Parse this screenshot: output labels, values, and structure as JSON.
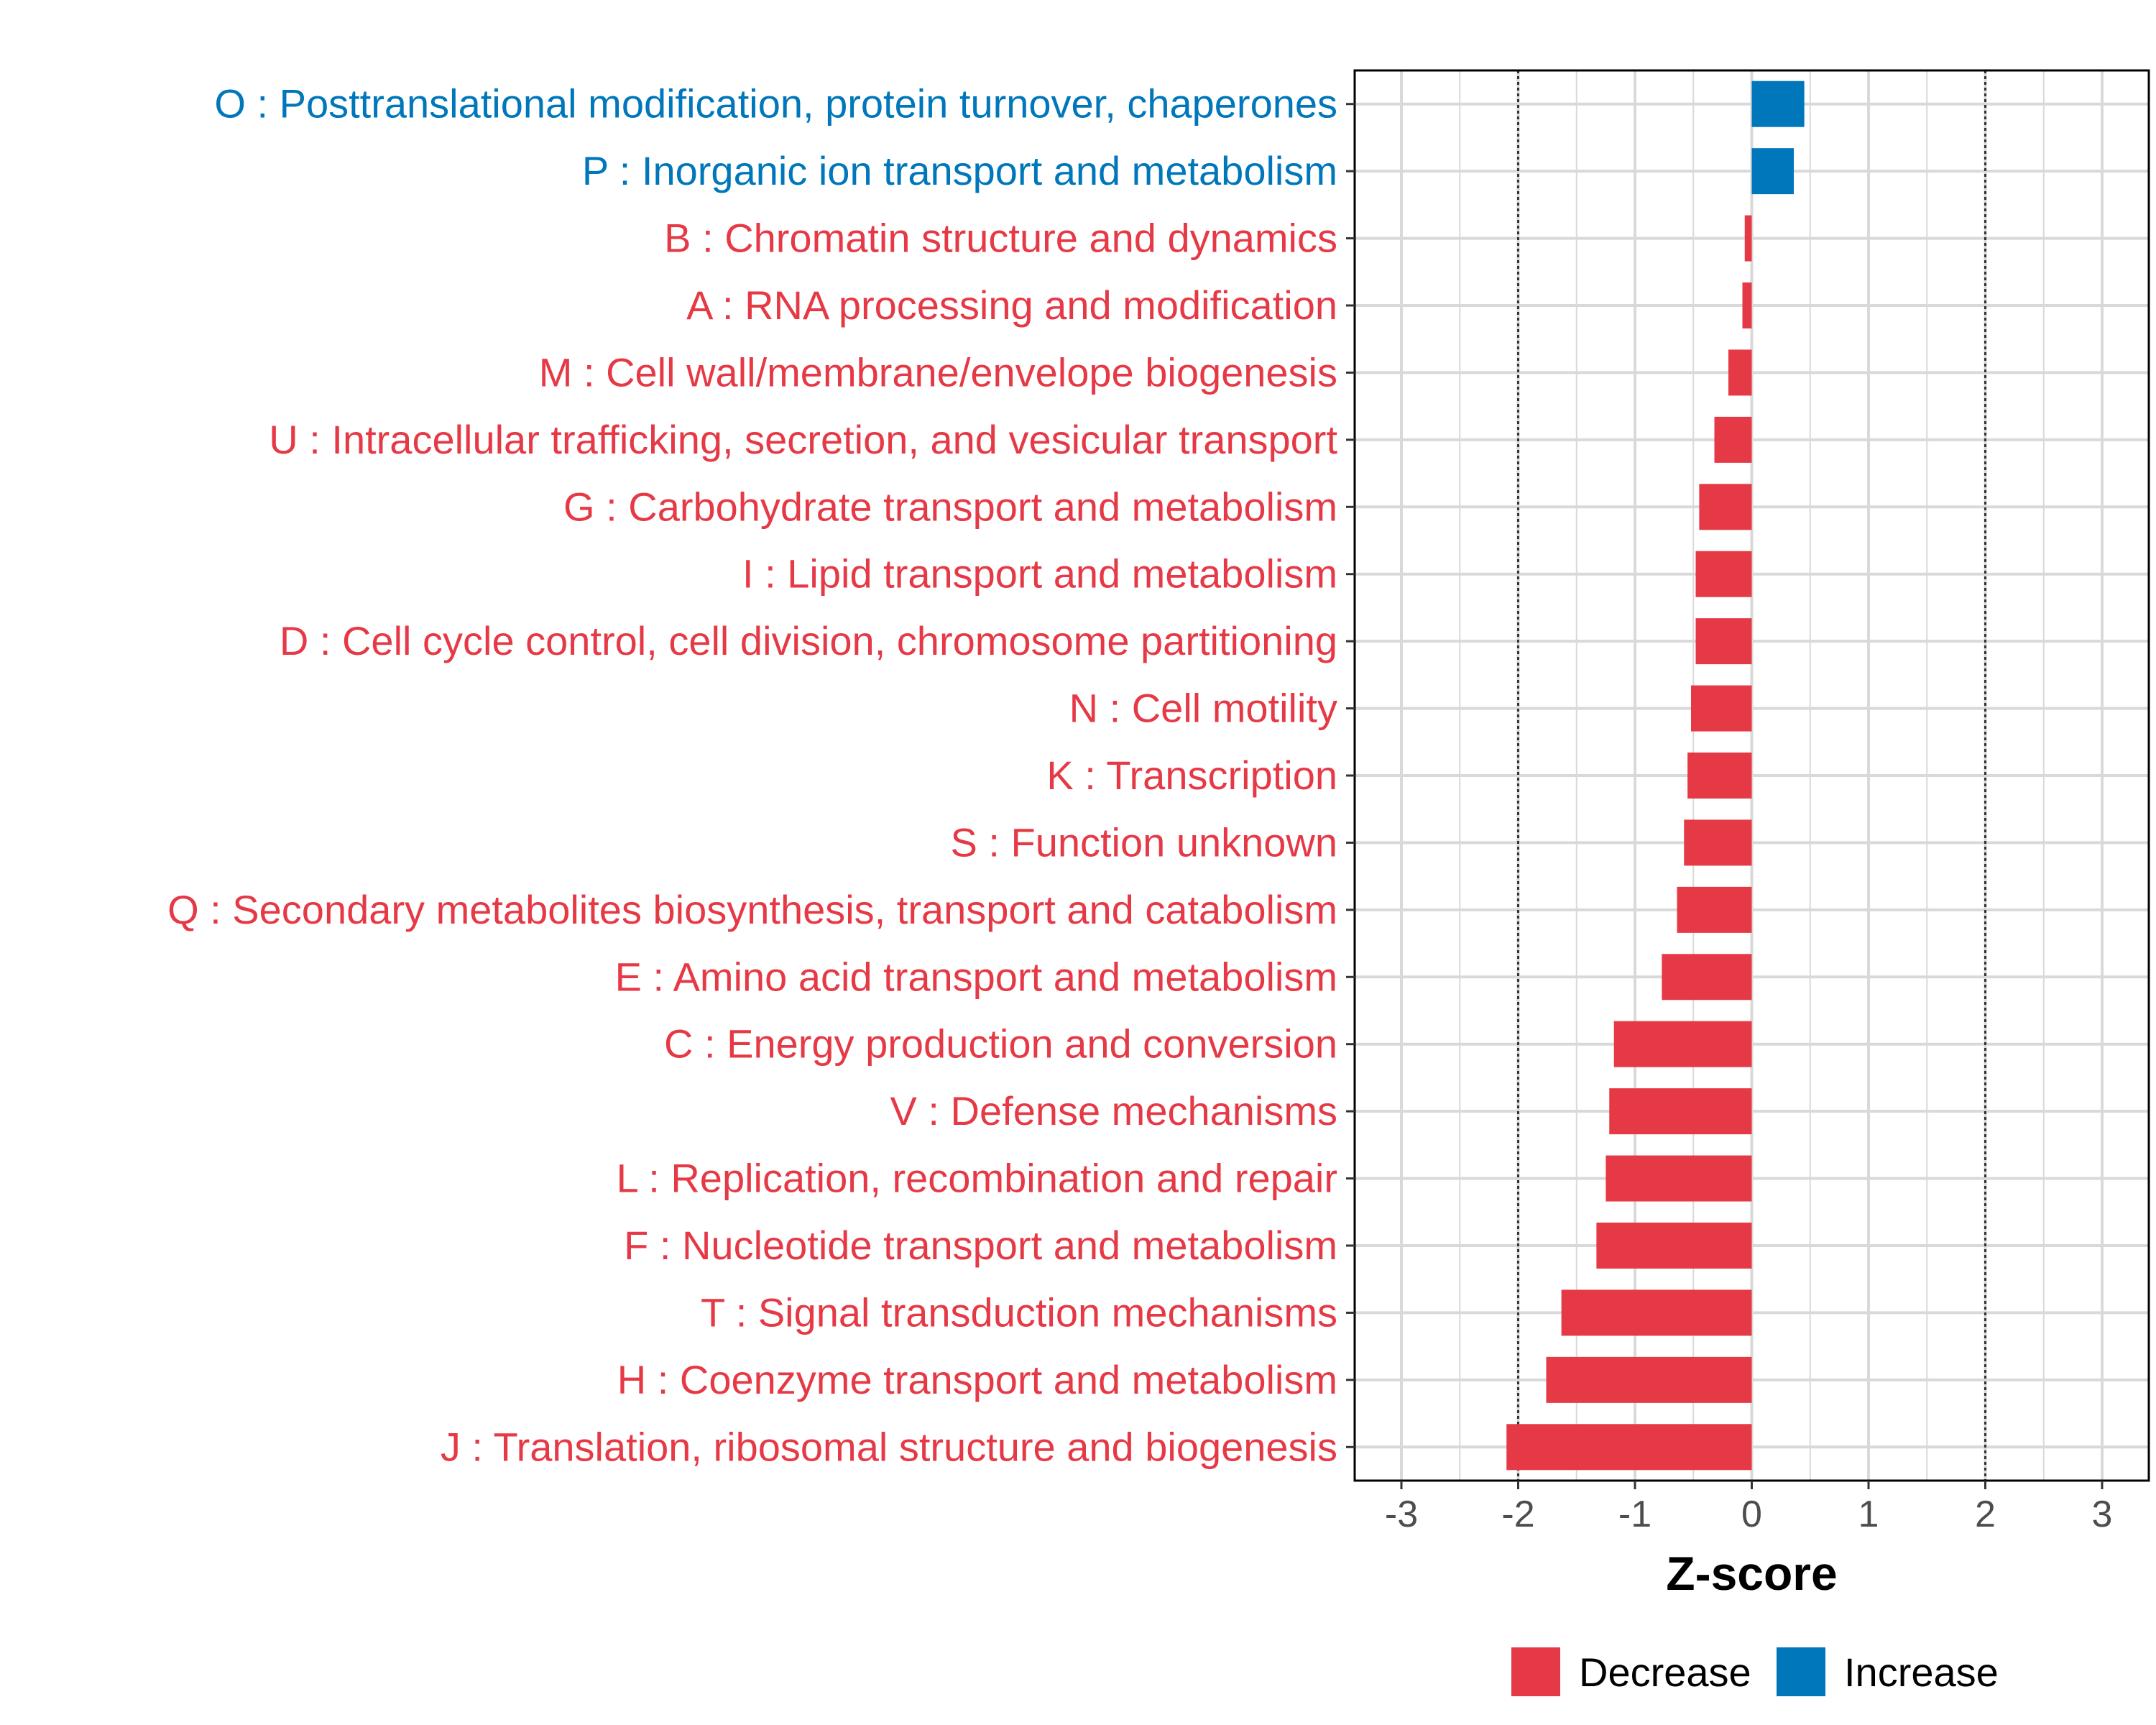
{
  "chart_data": {
    "type": "bar",
    "orientation": "horizontal",
    "title": "",
    "xlabel": "Z-score",
    "ylabel": "",
    "xlim": [
      -3.4,
      3.4
    ],
    "xticks": [
      -3,
      -2,
      -1,
      0,
      1,
      2,
      3
    ],
    "reference_lines": [
      -2,
      2
    ],
    "grid": true,
    "legend_position": "bottom",
    "categories": [
      "O : Posttranslational modification, protein turnover, chaperones",
      "P : Inorganic ion transport and metabolism",
      "B : Chromatin structure and dynamics",
      "A : RNA processing and modification",
      "M : Cell wall/membrane/envelope biogenesis",
      "U : Intracellular trafficking, secretion, and vesicular transport",
      "G : Carbohydrate transport and metabolism",
      "I : Lipid transport and metabolism",
      "D : Cell cycle control, cell division, chromosome partitioning",
      "N : Cell motility",
      "K : Transcription",
      "S : Function unknown",
      "Q : Secondary metabolites biosynthesis, transport and catabolism",
      "E : Amino acid transport and metabolism",
      "C : Energy production and conversion",
      "V : Defense mechanisms",
      "L : Replication, recombination and repair",
      "F : Nucleotide transport and metabolism",
      "T : Signal transduction mechanisms",
      "H : Coenzyme transport and metabolism",
      "J : Translation, ribosomal structure and biogenesis"
    ],
    "values": [
      0.45,
      0.36,
      -0.06,
      -0.08,
      -0.2,
      -0.32,
      -0.45,
      -0.48,
      -0.48,
      -0.52,
      -0.55,
      -0.58,
      -0.64,
      -0.77,
      -1.18,
      -1.22,
      -1.25,
      -1.33,
      -1.63,
      -1.76,
      -2.1
    ],
    "series_groups": [
      "Increase",
      "Increase",
      "Decrease",
      "Decrease",
      "Decrease",
      "Decrease",
      "Decrease",
      "Decrease",
      "Decrease",
      "Decrease",
      "Decrease",
      "Decrease",
      "Decrease",
      "Decrease",
      "Decrease",
      "Decrease",
      "Decrease",
      "Decrease",
      "Decrease",
      "Decrease",
      "Decrease"
    ],
    "legend": [
      {
        "name": "Decrease",
        "color": "#e63946"
      },
      {
        "name": "Increase",
        "color": "#0077bb"
      }
    ]
  }
}
